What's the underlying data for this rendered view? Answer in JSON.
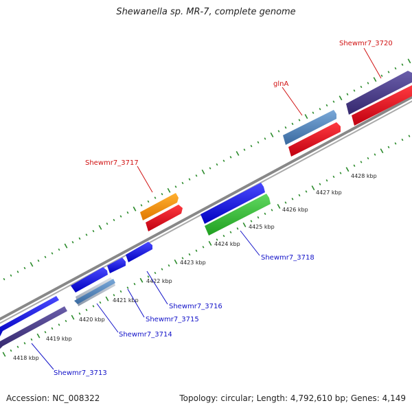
{
  "title": "Shewanella sp. MR-7, complete genome",
  "footer": {
    "accession": "Accession: NC_008322",
    "summary": "Topology: circular; Length: 4,792,610 bp; Genes: 4,149"
  },
  "scale": [
    {
      "label": "4418 kbp",
      "value": 4418
    },
    {
      "label": "4419 kbp",
      "value": 4419
    },
    {
      "label": "4420 kbp",
      "value": 4420
    },
    {
      "label": "4421 kbp",
      "value": 4421
    },
    {
      "label": "4422 kbp",
      "value": 4422
    },
    {
      "label": "4423 kbp",
      "value": 4423
    },
    {
      "label": "4424 kbp",
      "value": 4424
    },
    {
      "label": "4425 kbp",
      "value": 4425
    },
    {
      "label": "4426 kbp",
      "value": 4426
    },
    {
      "label": "4427 kbp",
      "value": 4427
    },
    {
      "label": "4428 kbp",
      "value": 4428
    }
  ],
  "gene_labels": [
    {
      "name": "Shewmr7_3713",
      "strand": "reverse",
      "color": "#1010c8"
    },
    {
      "name": "Shewmr7_3714",
      "strand": "reverse",
      "color": "#1010c8"
    },
    {
      "name": "Shewmr7_3715",
      "strand": "reverse",
      "color": "#1010c8"
    },
    {
      "name": "Shewmr7_3716",
      "strand": "reverse",
      "color": "#1010c8"
    },
    {
      "name": "Shewmr7_3717",
      "strand": "forward",
      "color": "#d01010"
    },
    {
      "name": "Shewmr7_3718",
      "strand": "reverse",
      "color": "#1010c8"
    },
    {
      "name": "glnA",
      "strand": "forward",
      "color": "#d01010"
    },
    {
      "name": "Shewmr7_3720",
      "strand": "forward",
      "color": "#d01010"
    }
  ],
  "colors": {
    "backbone": "#888888",
    "tick": "#2a8a2a",
    "gene_blue": "#0a0adc",
    "gene_dark_purple": "#4a3e8c",
    "gene_steel_blue": "#4a7fb5",
    "gene_red": "#e01020",
    "gene_orange": "#f39000",
    "gene_green": "#30b030",
    "gene_silver": "#b0b8c4"
  }
}
